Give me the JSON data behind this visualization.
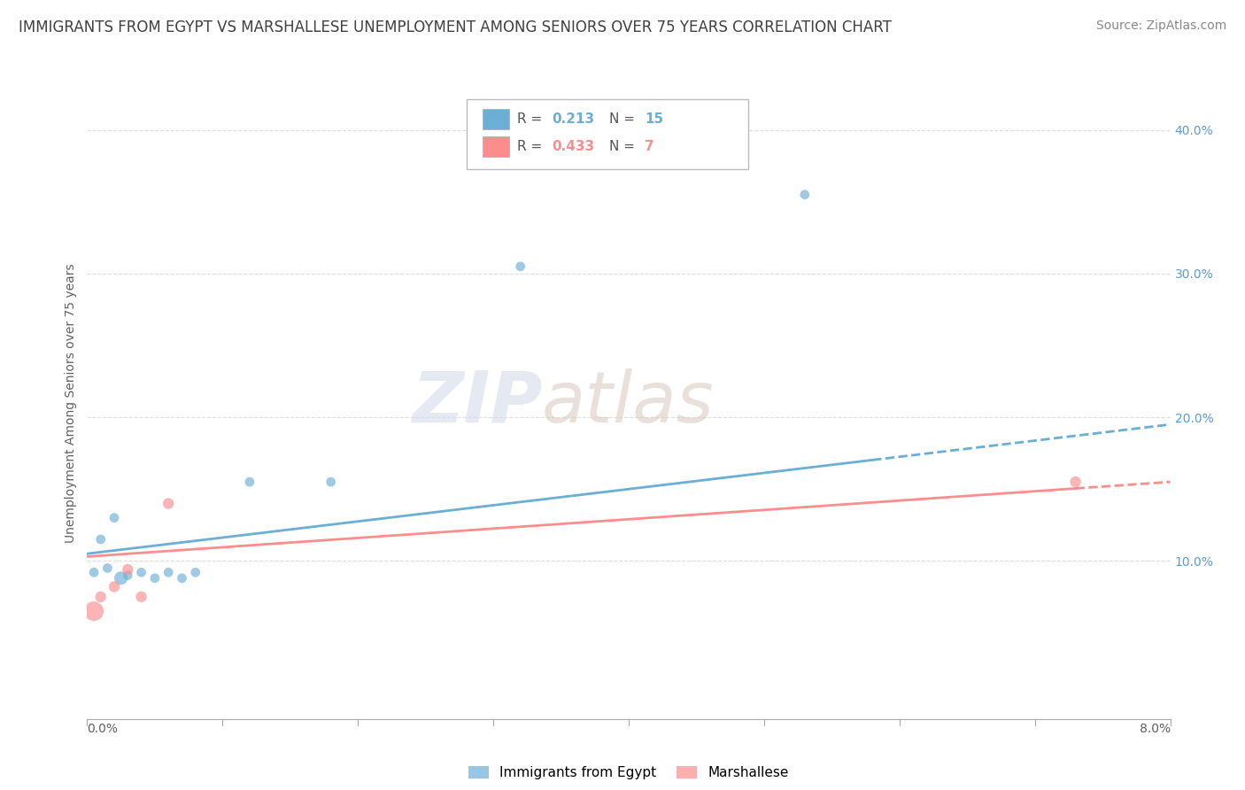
{
  "title": "IMMIGRANTS FROM EGYPT VS MARSHALLESE UNEMPLOYMENT AMONG SENIORS OVER 75 YEARS CORRELATION CHART",
  "source": "Source: ZipAtlas.com",
  "ylabel": "Unemployment Among Seniors over 75 years",
  "y_ticks": [
    0.0,
    0.1,
    0.2,
    0.3,
    0.4
  ],
  "y_tick_labels_right": [
    "",
    "10.0%",
    "20.0%",
    "30.0%",
    "40.0%"
  ],
  "x_range": [
    0.0,
    0.08
  ],
  "y_range": [
    -0.01,
    0.43
  ],
  "egypt_R": 0.213,
  "egypt_N": 15,
  "marshallese_R": 0.433,
  "marshallese_N": 7,
  "egypt_color": "#6baed6",
  "marshallese_color": "#fc8d8d",
  "egypt_scatter_x": [
    0.0005,
    0.001,
    0.0015,
    0.002,
    0.0025,
    0.003,
    0.004,
    0.005,
    0.006,
    0.007,
    0.008,
    0.012,
    0.018,
    0.032,
    0.053
  ],
  "egypt_scatter_y": [
    0.092,
    0.115,
    0.095,
    0.13,
    0.088,
    0.09,
    0.092,
    0.088,
    0.092,
    0.088,
    0.092,
    0.155,
    0.155,
    0.305,
    0.355
  ],
  "egypt_scatter_sizes": [
    60,
    60,
    60,
    60,
    120,
    60,
    60,
    60,
    60,
    60,
    60,
    60,
    60,
    60,
    60
  ],
  "marshallese_scatter_x": [
    0.0005,
    0.001,
    0.002,
    0.003,
    0.004,
    0.006,
    0.073
  ],
  "marshallese_scatter_y": [
    0.065,
    0.075,
    0.082,
    0.094,
    0.075,
    0.14,
    0.155
  ],
  "marshallese_scatter_sizes": [
    250,
    80,
    80,
    80,
    80,
    80,
    80
  ],
  "egypt_line_x": [
    0.0,
    0.08
  ],
  "egypt_line_y": [
    0.105,
    0.195
  ],
  "egypt_line_solid_end": 0.058,
  "marshallese_line_x": [
    0.0,
    0.08
  ],
  "marshallese_line_y": [
    0.103,
    0.155
  ],
  "marshallese_line_dashed_start": 0.073,
  "watermark_zip": "ZIP",
  "watermark_atlas": "atlas",
  "background_color": "#ffffff",
  "grid_color": "#dddddd",
  "axis_color": "#aaaaaa",
  "right_axis_color": "#5b9bd5",
  "legend_facecolor": "#ffffff",
  "legend_edgecolor": "#bbbbbb",
  "title_color": "#404040",
  "source_color": "#888888",
  "ylabel_color": "#606060",
  "bottom_legend_label1": "Immigrants from Egypt",
  "bottom_legend_label2": "Marshallese"
}
